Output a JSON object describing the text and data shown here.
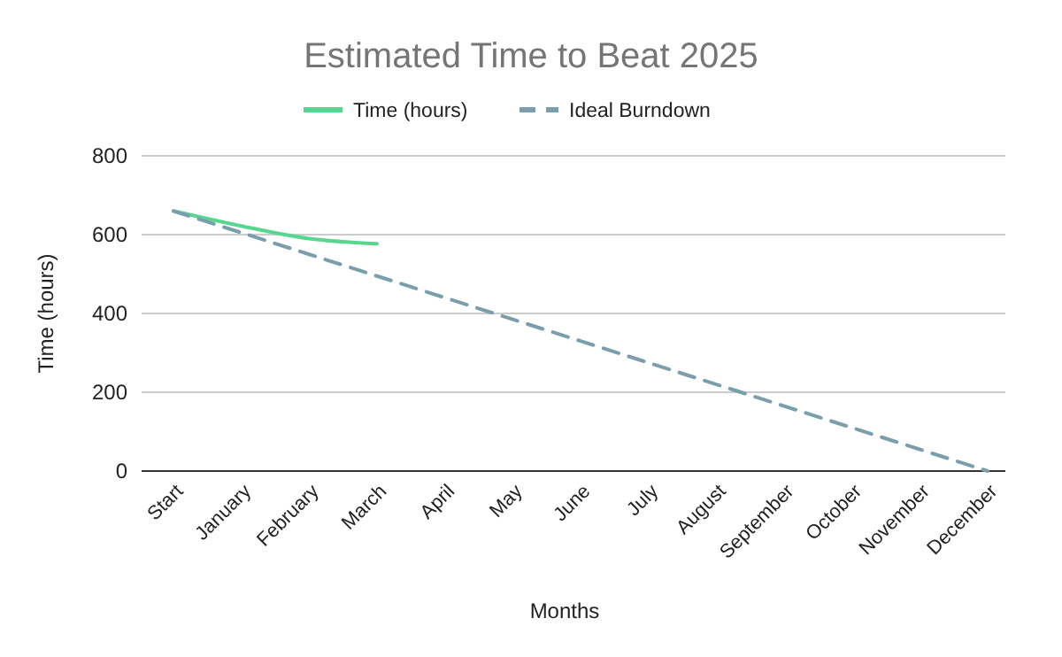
{
  "chart_data": {
    "type": "line",
    "title": "Estimated Time to Beat 2025",
    "xlabel": "Months",
    "ylabel": "Time (hours)",
    "categories": [
      "Start",
      "January",
      "February",
      "March",
      "April",
      "May",
      "June",
      "July",
      "August",
      "September",
      "October",
      "November",
      "December"
    ],
    "series": [
      {
        "name": "Time (hours)",
        "color": "#57d68d",
        "values": [
          660,
          622,
          590,
          577,
          null,
          null,
          null,
          null,
          null,
          null,
          null,
          null,
          null
        ]
      },
      {
        "name": "Ideal Burndown",
        "color": "#7b9eac",
        "line_style": "dashed",
        "values": [
          660,
          605,
          550,
          495,
          440,
          385,
          330,
          275,
          220,
          165,
          110,
          55,
          0
        ]
      }
    ],
    "ylim": [
      0,
      800
    ],
    "yticks": [
      0,
      200,
      400,
      600,
      800
    ],
    "grid": "y",
    "legend": "top"
  }
}
